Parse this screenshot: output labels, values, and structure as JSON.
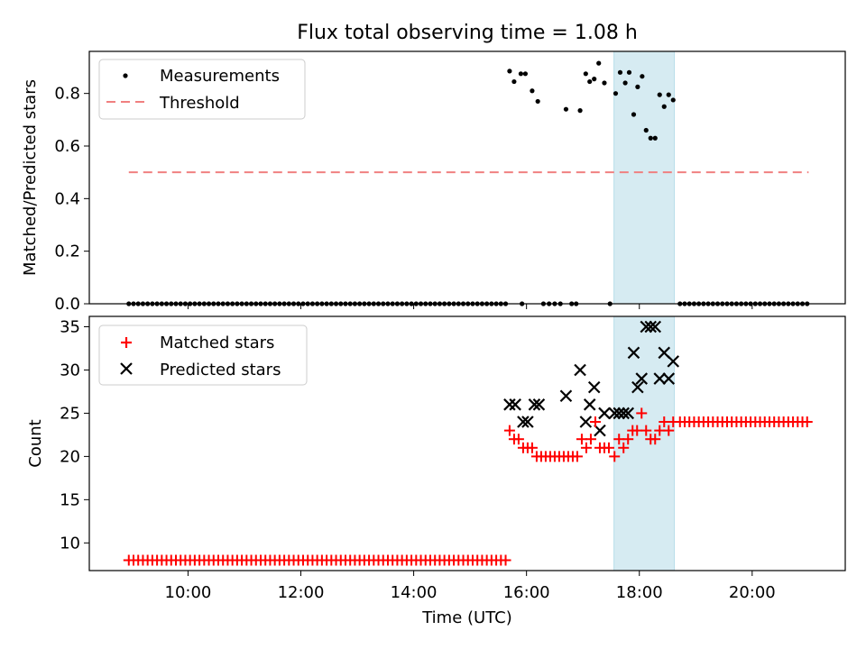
{
  "chart_data": {
    "type": "scatter",
    "title": "Flux total observing time = 1.08 h",
    "xlabel": "Time (UTC)",
    "xlim": [
      8.25,
      21.65
    ],
    "xticks": [
      10,
      12,
      14,
      16,
      18,
      20
    ],
    "xtick_labels": [
      "10:00",
      "12:00",
      "14:00",
      "16:00",
      "18:00",
      "20:00"
    ],
    "observing_window": [
      17.55,
      18.62
    ],
    "top_panel": {
      "ylabel": "Matched/Predicted stars",
      "ylim": [
        0.0,
        0.96
      ],
      "yticks": [
        0.0,
        0.2,
        0.4,
        0.6,
        0.8
      ],
      "ytick_labels": [
        "0.0",
        "0.2",
        "0.4",
        "0.6",
        "0.8"
      ],
      "legend": {
        "loc": "upper-left",
        "measurements": "Measurements",
        "threshold": "Threshold"
      },
      "threshold": {
        "value": 0.5,
        "x_range": [
          8.95,
          21.0
        ]
      },
      "measurements": [
        {
          "x": 15.7,
          "y": 0.885
        },
        {
          "x": 15.78,
          "y": 0.845
        },
        {
          "x": 15.9,
          "y": 0.875
        },
        {
          "x": 15.98,
          "y": 0.875
        },
        {
          "x": 16.1,
          "y": 0.81
        },
        {
          "x": 16.2,
          "y": 0.77
        },
        {
          "x": 16.7,
          "y": 0.74
        },
        {
          "x": 16.95,
          "y": 0.735
        },
        {
          "x": 17.05,
          "y": 0.875
        },
        {
          "x": 17.12,
          "y": 0.845
        },
        {
          "x": 17.2,
          "y": 0.855
        },
        {
          "x": 17.28,
          "y": 0.915
        },
        {
          "x": 17.38,
          "y": 0.84
        },
        {
          "x": 17.58,
          "y": 0.8
        },
        {
          "x": 17.66,
          "y": 0.88
        },
        {
          "x": 17.75,
          "y": 0.84
        },
        {
          "x": 17.82,
          "y": 0.88
        },
        {
          "x": 17.9,
          "y": 0.72
        },
        {
          "x": 17.97,
          "y": 0.825
        },
        {
          "x": 18.05,
          "y": 0.865
        },
        {
          "x": 18.12,
          "y": 0.66
        },
        {
          "x": 18.2,
          "y": 0.63
        },
        {
          "x": 18.28,
          "y": 0.63
        },
        {
          "x": 18.36,
          "y": 0.795
        },
        {
          "x": 18.44,
          "y": 0.75
        },
        {
          "x": 18.52,
          "y": 0.795
        },
        {
          "x": 18.6,
          "y": 0.775
        },
        {
          "x": 15.92,
          "y": 0.0
        },
        {
          "x": 16.3,
          "y": 0.0
        },
        {
          "x": 16.4,
          "y": 0.0
        },
        {
          "x": 16.5,
          "y": 0.0
        },
        {
          "x": 16.6,
          "y": 0.0
        },
        {
          "x": 16.8,
          "y": 0.0
        },
        {
          "x": 16.88,
          "y": 0.0
        },
        {
          "x": 17.48,
          "y": 0.0
        }
      ],
      "zero_runs": [
        {
          "start": 8.95,
          "end": 15.65,
          "step": 0.0835
        },
        {
          "start": 18.72,
          "end": 21.0,
          "step": 0.0835
        }
      ]
    },
    "bottom_panel": {
      "ylabel": "Count",
      "ylim": [
        6.8,
        36.2
      ],
      "yticks": [
        10,
        15,
        20,
        25,
        30,
        35
      ],
      "ytick_labels": [
        "10",
        "15",
        "20",
        "25",
        "30",
        "35"
      ],
      "legend": {
        "loc": "upper-left",
        "matched": "Matched stars",
        "predicted": "Predicted stars"
      },
      "matched_runs": [
        {
          "start": 8.95,
          "end": 15.65,
          "step": 0.0835,
          "value": 8
        },
        {
          "start": 18.72,
          "end": 21.0,
          "step": 0.0835,
          "value": 24
        }
      ],
      "matched_points": [
        {
          "x": 15.7,
          "y": 23
        },
        {
          "x": 15.78,
          "y": 22
        },
        {
          "x": 15.86,
          "y": 22
        },
        {
          "x": 15.94,
          "y": 21
        },
        {
          "x": 16.02,
          "y": 21
        },
        {
          "x": 16.1,
          "y": 21
        },
        {
          "x": 16.18,
          "y": 20
        },
        {
          "x": 16.26,
          "y": 20
        },
        {
          "x": 16.34,
          "y": 20
        },
        {
          "x": 16.42,
          "y": 20
        },
        {
          "x": 16.5,
          "y": 20
        },
        {
          "x": 16.58,
          "y": 20
        },
        {
          "x": 16.66,
          "y": 20
        },
        {
          "x": 16.74,
          "y": 20
        },
        {
          "x": 16.82,
          "y": 20
        },
        {
          "x": 16.9,
          "y": 20
        },
        {
          "x": 16.98,
          "y": 22
        },
        {
          "x": 17.06,
          "y": 21
        },
        {
          "x": 17.14,
          "y": 22
        },
        {
          "x": 17.22,
          "y": 24
        },
        {
          "x": 17.3,
          "y": 21
        },
        {
          "x": 17.38,
          "y": 21
        },
        {
          "x": 17.46,
          "y": 21
        },
        {
          "x": 17.56,
          "y": 20
        },
        {
          "x": 17.64,
          "y": 22
        },
        {
          "x": 17.72,
          "y": 21
        },
        {
          "x": 17.8,
          "y": 22
        },
        {
          "x": 17.88,
          "y": 23
        },
        {
          "x": 17.96,
          "y": 23
        },
        {
          "x": 18.04,
          "y": 25
        },
        {
          "x": 18.12,
          "y": 23
        },
        {
          "x": 18.2,
          "y": 22
        },
        {
          "x": 18.28,
          "y": 22
        },
        {
          "x": 18.36,
          "y": 23
        },
        {
          "x": 18.44,
          "y": 24
        },
        {
          "x": 18.52,
          "y": 23
        },
        {
          "x": 18.6,
          "y": 24
        }
      ],
      "predicted_points": [
        {
          "x": 15.7,
          "y": 26
        },
        {
          "x": 15.8,
          "y": 26
        },
        {
          "x": 15.94,
          "y": 24
        },
        {
          "x": 16.02,
          "y": 24
        },
        {
          "x": 16.14,
          "y": 26
        },
        {
          "x": 16.22,
          "y": 26
        },
        {
          "x": 16.7,
          "y": 27
        },
        {
          "x": 16.95,
          "y": 30
        },
        {
          "x": 17.05,
          "y": 24
        },
        {
          "x": 17.12,
          "y": 26
        },
        {
          "x": 17.2,
          "y": 28
        },
        {
          "x": 17.3,
          "y": 23
        },
        {
          "x": 17.38,
          "y": 25
        },
        {
          "x": 17.56,
          "y": 25
        },
        {
          "x": 17.64,
          "y": 25
        },
        {
          "x": 17.72,
          "y": 25
        },
        {
          "x": 17.8,
          "y": 25
        },
        {
          "x": 17.9,
          "y": 32
        },
        {
          "x": 17.97,
          "y": 28
        },
        {
          "x": 18.04,
          "y": 29
        },
        {
          "x": 18.12,
          "y": 35
        },
        {
          "x": 18.2,
          "y": 35
        },
        {
          "x": 18.28,
          "y": 35
        },
        {
          "x": 18.36,
          "y": 29
        },
        {
          "x": 18.44,
          "y": 32
        },
        {
          "x": 18.52,
          "y": 29
        },
        {
          "x": 18.6,
          "y": 31
        }
      ]
    },
    "colors": {
      "measurement": "#000000",
      "threshold": "#f08080",
      "matched": "#ff0000",
      "predicted": "#000000",
      "window": "#add8e6",
      "axis": "#000000",
      "legend_border": "#cccccc"
    }
  }
}
